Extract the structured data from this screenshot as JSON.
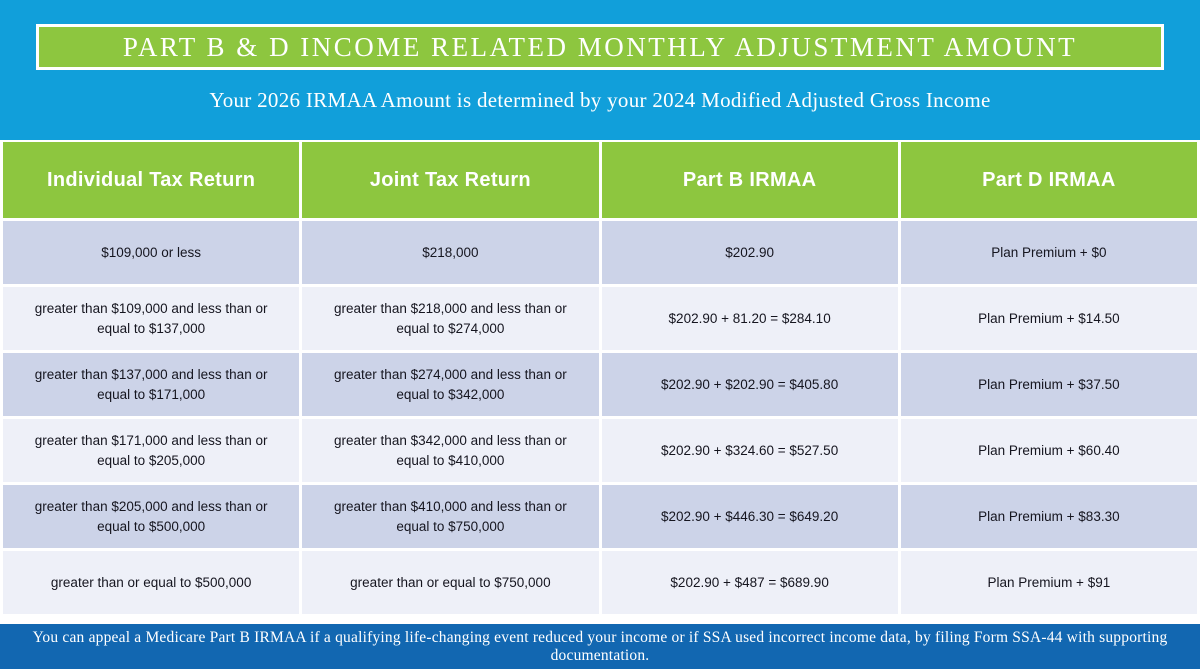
{
  "title_bar": {
    "text": "PART B & D INCOME RELATED MONTHLY ADJUSTMENT AMOUNT"
  },
  "subtitle": "Your 2026 IRMAA Amount is determined by your 2024 Modified Adjusted Gross Income",
  "table": {
    "columns": [
      "Individual Tax Return",
      "Joint Tax Return",
      "Part B IRMAA",
      "Part D IRMAA"
    ],
    "rows": [
      [
        "$109,000 or less",
        "$218,000",
        "$202.90",
        "Plan Premium + $0"
      ],
      [
        "greater than $109,000 and less than or equal to $137,000",
        "greater than $218,000 and less than or equal to $274,000",
        "$202.90 + 81.20 = $284.10",
        "Plan Premium + $14.50"
      ],
      [
        "greater than $137,000 and less than or equal to $171,000",
        "greater than $274,000 and less than or equal to $342,000",
        "$202.90 + $202.90 = $405.80",
        "Plan Premium + $37.50"
      ],
      [
        "greater than $171,000 and less than or equal to $205,000",
        "greater than $342,000 and less than or equal to $410,000",
        "$202.90 + $324.60 = $527.50",
        "Plan Premium + $60.40"
      ],
      [
        "greater than $205,000 and less than or equal to $500,000",
        "greater than $410,000 and less than or equal to $750,000",
        "$202.90 + $446.30 = $649.20",
        "Plan Premium + $83.30"
      ],
      [
        "greater than or equal to $500,000",
        "greater than or equal to $750,000",
        "$202.90 + $487 = $689.90",
        "Plan Premium + $91"
      ]
    ]
  },
  "footer": {
    "text": "You can appeal a Medicare Part B IRMAA if a qualifying life-changing event reduced your income or if SSA used incorrect income data, by filing Form SSA-44 with supporting documentation."
  },
  "colors": {
    "background_blue": "#119fda",
    "accent_green": "#8dc63f",
    "row_lavender": "#ccd3e8",
    "row_light": "#eef0f8",
    "footer_blue": "#1267b1",
    "text_white": "#ffffff",
    "text_dark": "#15151f"
  }
}
